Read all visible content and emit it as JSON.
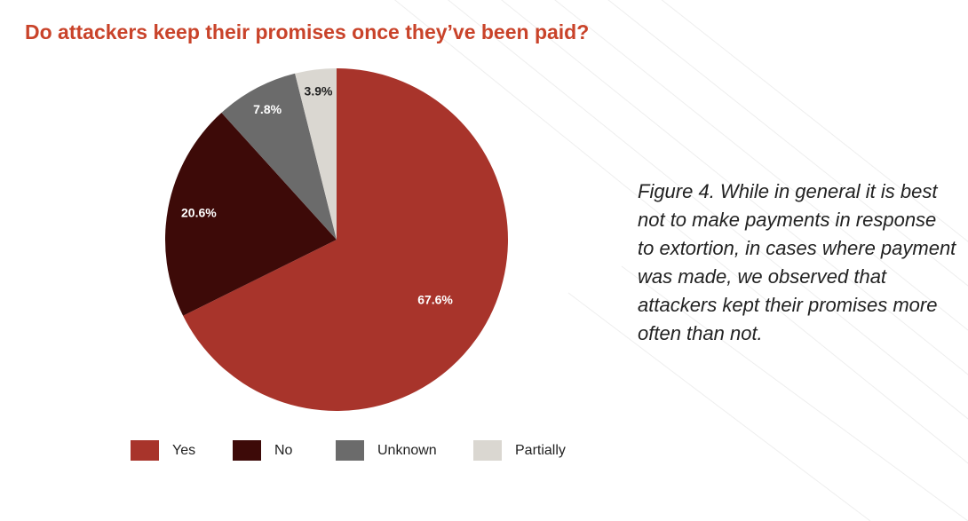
{
  "chart_data": {
    "type": "pie",
    "title": "Do attackers keep their promises once they’ve been paid?",
    "caption": "Figure 4. While in general it is best not to make payments in response to extortion, in cases where payment was made, we observed that attackers kept their promises more often than not.",
    "categories": [
      "Yes",
      "No",
      "Unknown",
      "Partially"
    ],
    "values": [
      67.6,
      20.6,
      7.8,
      3.9
    ],
    "value_labels": [
      "67.6%",
      "20.6%",
      "7.8%",
      "3.9%"
    ],
    "colors": [
      "#a8342b",
      "#3d0a08",
      "#6b6b6b",
      "#dad7d1"
    ],
    "legend": "bottom"
  }
}
